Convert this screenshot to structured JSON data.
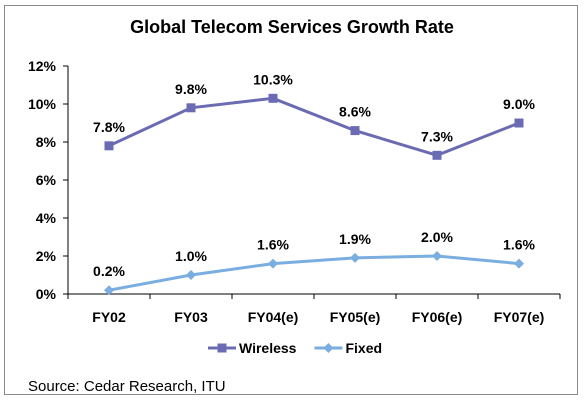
{
  "chart_data": {
    "type": "line",
    "title": "Global Telecom Services Growth Rate",
    "categories": [
      "FY02",
      "FY03",
      "FY04(e)",
      "FY05(e)",
      "FY06(e)",
      "FY07(e)"
    ],
    "ylim": [
      0,
      12
    ],
    "yticks": [
      "0%",
      "2%",
      "4%",
      "6%",
      "8%",
      "10%",
      "12%"
    ],
    "grid": false,
    "legend_position": "bottom",
    "series": [
      {
        "name": "Wireless",
        "values": [
          7.8,
          9.8,
          10.3,
          8.6,
          7.3,
          9.0
        ],
        "labels": [
          "7.8%",
          "9.8%",
          "10.3%",
          "8.6%",
          "7.3%",
          "9.0%"
        ],
        "color": "#6b6bb3",
        "marker": "square"
      },
      {
        "name": "Fixed",
        "values": [
          0.2,
          1.0,
          1.6,
          1.9,
          2.0,
          1.6
        ],
        "labels": [
          "0.2%",
          "1.0%",
          "1.6%",
          "1.9%",
          "2.0%",
          "1.6%"
        ],
        "color": "#7aaee0",
        "marker": "diamond"
      }
    ]
  },
  "source": "Source: Cedar Research, ITU"
}
